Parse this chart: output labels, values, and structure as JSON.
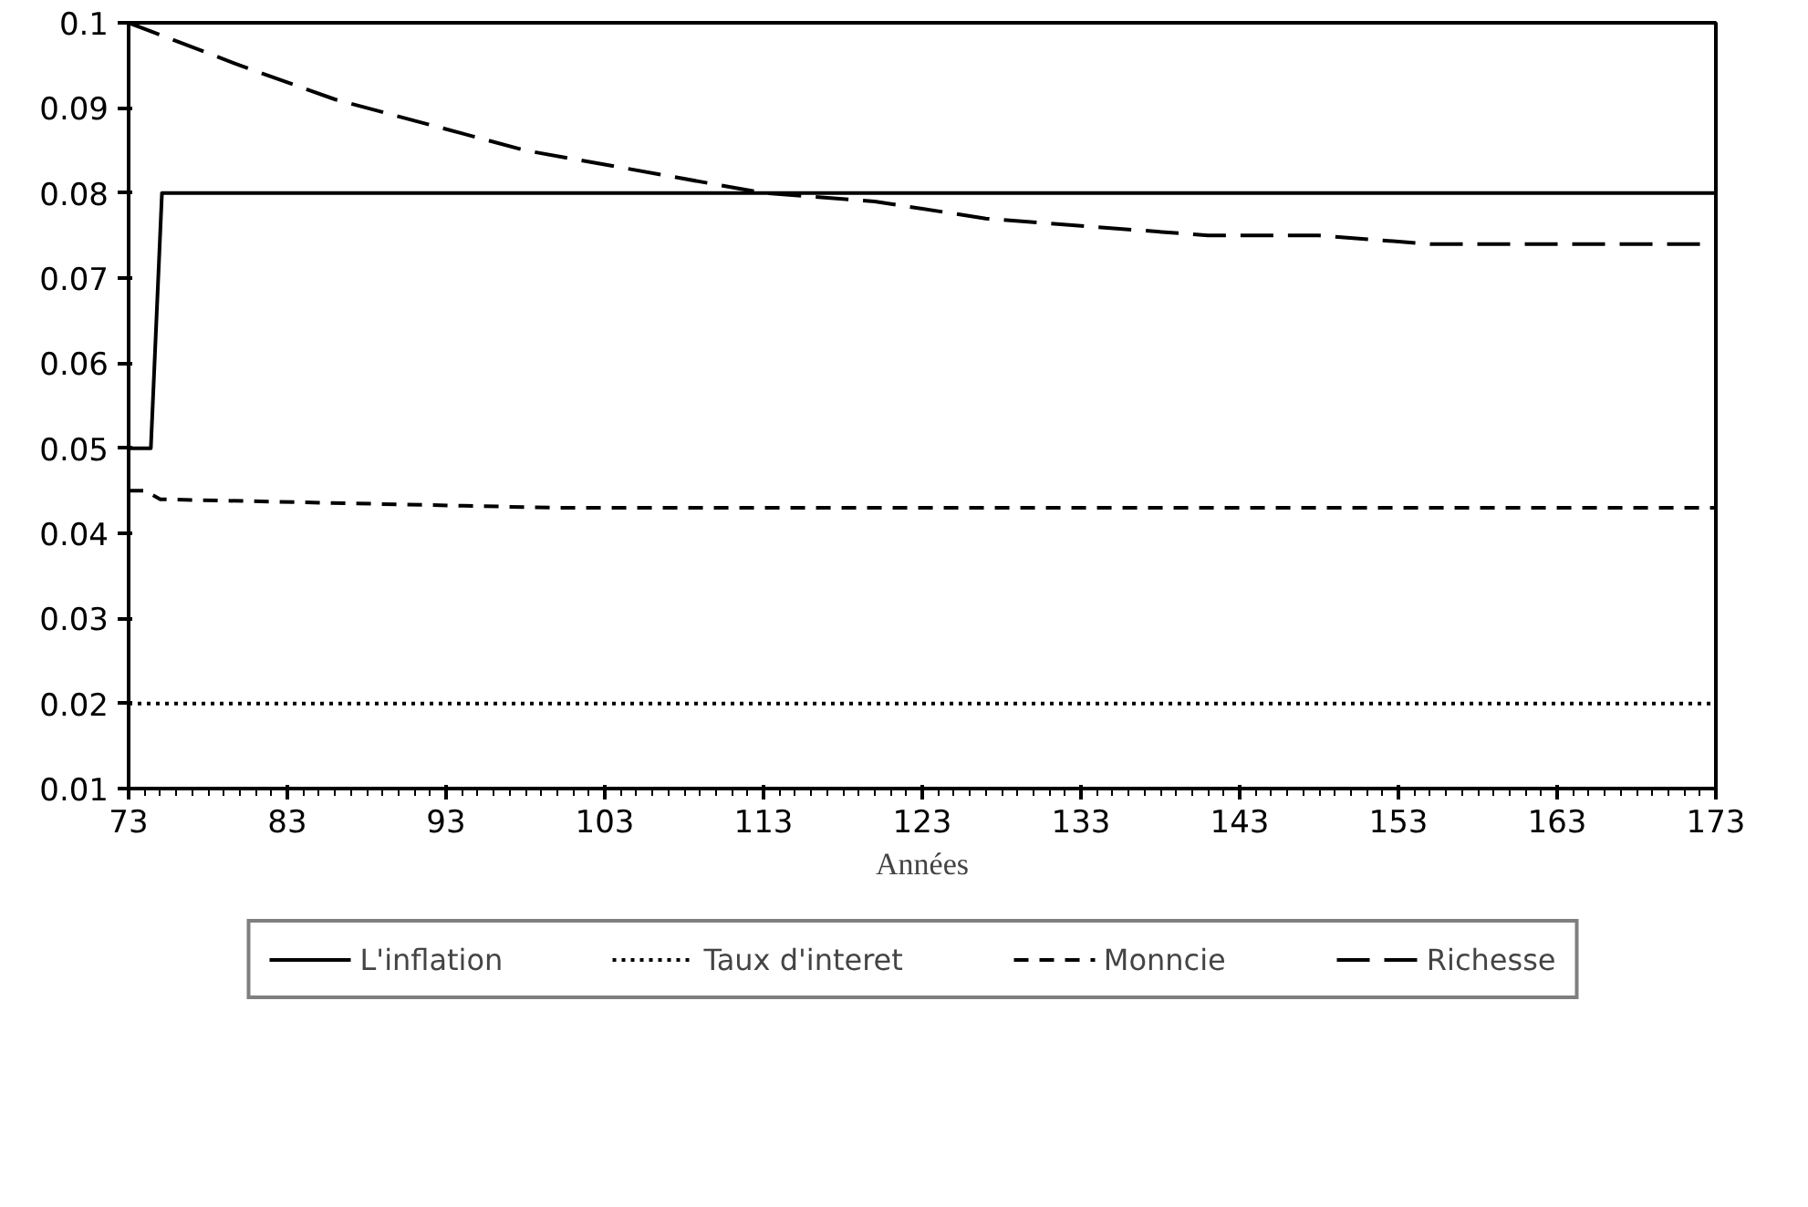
{
  "chart_data": {
    "type": "line",
    "xlabel": "Années",
    "xlim": [
      73,
      173
    ],
    "xticks": [
      73,
      83,
      93,
      103,
      113,
      123,
      133,
      143,
      153,
      163,
      173
    ],
    "ylim": [
      0.01,
      0.1
    ],
    "yticks": [
      0.01,
      0.02,
      0.03,
      0.04,
      0.05,
      0.06,
      0.07,
      0.08,
      0.09,
      0.1
    ],
    "grid": false,
    "legend": "bottom",
    "marker": "none",
    "series": [
      {
        "name": "L'inflation",
        "color": "#000000",
        "line_style": "solid",
        "x": [
          73,
          74.4,
          75.1,
          173
        ],
        "values": [
          0.05,
          0.05,
          0.08,
          0.08
        ]
      },
      {
        "name": "Taux d'interet",
        "color": "#000000",
        "line_style": "dotted",
        "x": [
          73,
          173
        ],
        "values": [
          0.02,
          0.02
        ]
      },
      {
        "name": "Monncie",
        "color": "#000000",
        "line_style": "dashed",
        "x": [
          73,
          74,
          75,
          100,
          173
        ],
        "values": [
          0.045,
          0.045,
          0.044,
          0.043,
          0.043
        ]
      },
      {
        "name": "Richesse",
        "color": "#000000",
        "line_style": "longdash",
        "x": [
          73,
          80,
          86,
          92,
          98,
          104,
          110,
          113,
          120,
          127,
          134,
          141,
          148,
          155,
          162,
          168,
          173
        ],
        "values": [
          0.1,
          0.095,
          0.091,
          0.088,
          0.085,
          0.083,
          0.081,
          0.08,
          0.079,
          0.077,
          0.076,
          0.075,
          0.075,
          0.074,
          0.074,
          0.074,
          0.074
        ]
      }
    ]
  }
}
